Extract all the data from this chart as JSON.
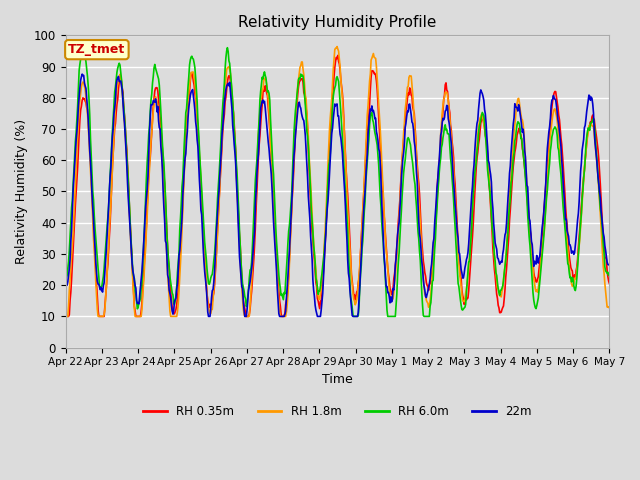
{
  "title": "Relativity Humidity Profile",
  "xlabel": "Time",
  "ylabel": "Relativity Humidity (%)",
  "ylim": [
    0,
    100
  ],
  "background_color": "#dcdcdc",
  "plot_bg_color": "#dcdcdc",
  "grid_color": "white",
  "annotation_text": "TZ_tmet",
  "annotation_bg": "#ffffcc",
  "annotation_border": "#cc8800",
  "annotation_text_color": "#cc0000",
  "series_names": [
    "RH 0.35m",
    "RH 1.8m",
    "RH 6.0m",
    "22m"
  ],
  "series_colors": [
    "#ff0000",
    "#ff9900",
    "#00cc00",
    "#0000cc"
  ],
  "lw": 1.2,
  "xtick_labels": [
    "Apr 22",
    "Apr 23",
    "Apr 24",
    "Apr 25",
    "Apr 26",
    "Apr 27",
    "Apr 28",
    "Apr 29",
    "Apr 30",
    "May 1",
    "May 2",
    "May 3",
    "May 4",
    "May 5",
    "May 6",
    "May 7"
  ],
  "ytick_labels": [
    "0",
    "10",
    "20",
    "30",
    "40",
    "50",
    "60",
    "70",
    "80",
    "90",
    "100"
  ],
  "ytick_values": [
    0,
    10,
    20,
    30,
    40,
    50,
    60,
    70,
    80,
    90,
    100
  ],
  "n_days": 15,
  "pts_per_day": 48
}
